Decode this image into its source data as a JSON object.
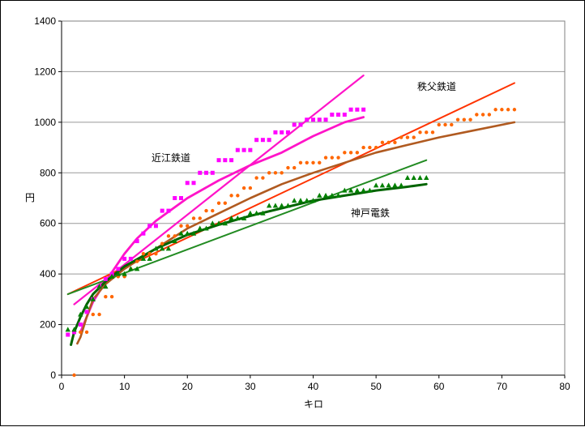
{
  "chart_data": {
    "type": "scatter",
    "xlabel": "キロ",
    "ylabel": "円",
    "xlim": [
      0,
      80
    ],
    "ylim": [
      0,
      1400
    ],
    "x_ticks": [
      0,
      10,
      20,
      30,
      40,
      50,
      60,
      70,
      80
    ],
    "y_ticks": [
      0,
      200,
      400,
      600,
      800,
      1000,
      1200,
      1400
    ],
    "grid": "horizontal",
    "legend": "none",
    "series": [
      {
        "name": "近江鉄道",
        "color": "#ff00ff",
        "marker": "square",
        "points": [
          [
            1,
            160
          ],
          [
            2,
            170
          ],
          [
            3,
            200
          ],
          [
            4,
            250
          ],
          [
            5,
            300
          ],
          [
            6,
            350
          ],
          [
            7,
            380
          ],
          [
            8,
            400
          ],
          [
            9,
            420
          ],
          [
            10,
            460
          ],
          [
            11,
            460
          ],
          [
            12,
            530
          ],
          [
            13,
            560
          ],
          [
            14,
            590
          ],
          [
            15,
            590
          ],
          [
            16,
            650
          ],
          [
            17,
            650
          ],
          [
            18,
            700
          ],
          [
            19,
            700
          ],
          [
            20,
            760
          ],
          [
            21,
            760
          ],
          [
            22,
            800
          ],
          [
            23,
            800
          ],
          [
            24,
            800
          ],
          [
            25,
            850
          ],
          [
            26,
            850
          ],
          [
            27,
            850
          ],
          [
            28,
            890
          ],
          [
            29,
            890
          ],
          [
            30,
            890
          ],
          [
            31,
            930
          ],
          [
            32,
            930
          ],
          [
            33,
            930
          ],
          [
            34,
            960
          ],
          [
            35,
            960
          ],
          [
            36,
            960
          ],
          [
            37,
            990
          ],
          [
            38,
            990
          ],
          [
            39,
            1010
          ],
          [
            40,
            1010
          ],
          [
            41,
            1010
          ],
          [
            42,
            1010
          ],
          [
            43,
            1030
          ],
          [
            44,
            1030
          ],
          [
            45,
            1030
          ],
          [
            46,
            1050
          ],
          [
            47,
            1050
          ],
          [
            48,
            1050
          ]
        ],
        "linear_fit": [
          [
            2,
            280
          ],
          [
            48,
            1185
          ]
        ],
        "log_fit": [
          [
            3,
            170
          ],
          [
            4,
            230
          ],
          [
            5,
            290
          ],
          [
            7,
            370
          ],
          [
            10,
            480
          ],
          [
            12,
            540
          ],
          [
            15,
            610
          ],
          [
            20,
            700
          ],
          [
            25,
            770
          ],
          [
            30,
            830
          ],
          [
            35,
            880
          ],
          [
            40,
            945
          ],
          [
            45,
            1000
          ],
          [
            48,
            1020
          ]
        ]
      },
      {
        "name": "秩父鉄道",
        "color": "#ff6600",
        "marker": "circle",
        "points": [
          [
            2,
            0
          ],
          [
            3,
            170
          ],
          [
            4,
            170
          ],
          [
            5,
            240
          ],
          [
            6,
            240
          ],
          [
            7,
            310
          ],
          [
            8,
            310
          ],
          [
            9,
            390
          ],
          [
            10,
            390
          ],
          [
            11,
            420
          ],
          [
            12,
            450
          ],
          [
            13,
            480
          ],
          [
            14,
            480
          ],
          [
            15,
            480
          ],
          [
            16,
            520
          ],
          [
            17,
            550
          ],
          [
            18,
            550
          ],
          [
            19,
            590
          ],
          [
            20,
            590
          ],
          [
            21,
            620
          ],
          [
            22,
            620
          ],
          [
            23,
            650
          ],
          [
            24,
            650
          ],
          [
            25,
            680
          ],
          [
            26,
            680
          ],
          [
            27,
            710
          ],
          [
            28,
            710
          ],
          [
            29,
            740
          ],
          [
            30,
            740
          ],
          [
            31,
            780
          ],
          [
            32,
            780
          ],
          [
            33,
            800
          ],
          [
            34,
            800
          ],
          [
            35,
            800
          ],
          [
            36,
            820
          ],
          [
            37,
            820
          ],
          [
            38,
            840
          ],
          [
            39,
            840
          ],
          [
            40,
            840
          ],
          [
            41,
            840
          ],
          [
            42,
            860
          ],
          [
            43,
            860
          ],
          [
            44,
            860
          ],
          [
            45,
            880
          ],
          [
            46,
            880
          ],
          [
            47,
            880
          ],
          [
            48,
            900
          ],
          [
            49,
            900
          ],
          [
            50,
            900
          ],
          [
            51,
            920
          ],
          [
            52,
            920
          ],
          [
            53,
            920
          ],
          [
            54,
            940
          ],
          [
            55,
            940
          ],
          [
            56,
            940
          ],
          [
            57,
            960
          ],
          [
            58,
            960
          ],
          [
            59,
            960
          ],
          [
            60,
            990
          ],
          [
            61,
            990
          ],
          [
            62,
            990
          ],
          [
            63,
            1010
          ],
          [
            64,
            1010
          ],
          [
            65,
            1010
          ],
          [
            66,
            1030
          ],
          [
            67,
            1030
          ],
          [
            68,
            1030
          ],
          [
            69,
            1050
          ],
          [
            70,
            1050
          ],
          [
            71,
            1050
          ],
          [
            72,
            1050
          ]
        ],
        "linear_fit": [
          [
            1,
            320
          ],
          [
            72,
            1155
          ]
        ],
        "log_fit": [
          [
            2.5,
            125
          ],
          [
            3,
            150
          ],
          [
            4,
            230
          ],
          [
            5,
            300
          ],
          [
            7,
            360
          ],
          [
            10,
            420
          ],
          [
            15,
            500
          ],
          [
            20,
            580
          ],
          [
            25,
            640
          ],
          [
            30,
            700
          ],
          [
            35,
            755
          ],
          [
            40,
            800
          ],
          [
            45,
            840
          ],
          [
            50,
            880
          ],
          [
            55,
            910
          ],
          [
            60,
            940
          ],
          [
            65,
            965
          ],
          [
            72,
            1000
          ]
        ]
      },
      {
        "name": "神戸電鉄",
        "color": "#008000",
        "marker": "triangle",
        "points": [
          [
            1,
            180
          ],
          [
            2,
            180
          ],
          [
            3,
            240
          ],
          [
            4,
            270
          ],
          [
            5,
            300
          ],
          [
            6,
            350
          ],
          [
            7,
            350
          ],
          [
            8,
            390
          ],
          [
            9,
            400
          ],
          [
            10,
            400
          ],
          [
            11,
            420
          ],
          [
            12,
            420
          ],
          [
            13,
            460
          ],
          [
            14,
            460
          ],
          [
            15,
            500
          ],
          [
            16,
            500
          ],
          [
            17,
            500
          ],
          [
            18,
            530
          ],
          [
            19,
            560
          ],
          [
            20,
            560
          ],
          [
            21,
            560
          ],
          [
            22,
            580
          ],
          [
            23,
            580
          ],
          [
            24,
            600
          ],
          [
            25,
            600
          ],
          [
            26,
            600
          ],
          [
            27,
            620
          ],
          [
            28,
            620
          ],
          [
            29,
            620
          ],
          [
            30,
            640
          ],
          [
            31,
            640
          ],
          [
            32,
            640
          ],
          [
            33,
            670
          ],
          [
            34,
            670
          ],
          [
            35,
            670
          ],
          [
            36,
            670
          ],
          [
            37,
            690
          ],
          [
            38,
            690
          ],
          [
            39,
            690
          ],
          [
            40,
            690
          ],
          [
            41,
            710
          ],
          [
            42,
            710
          ],
          [
            43,
            710
          ],
          [
            44,
            710
          ],
          [
            45,
            730
          ],
          [
            46,
            730
          ],
          [
            47,
            730
          ],
          [
            48,
            730
          ],
          [
            49,
            730
          ],
          [
            50,
            750
          ],
          [
            51,
            750
          ],
          [
            52,
            750
          ],
          [
            53,
            750
          ],
          [
            54,
            750
          ],
          [
            55,
            780
          ],
          [
            56,
            780
          ],
          [
            57,
            780
          ],
          [
            58,
            780
          ]
        ],
        "linear_fit": [
          [
            1,
            320
          ],
          [
            58,
            850
          ]
        ],
        "log_fit": [
          [
            1.5,
            120
          ],
          [
            2,
            170
          ],
          [
            3,
            230
          ],
          [
            4,
            280
          ],
          [
            5,
            320
          ],
          [
            7,
            370
          ],
          [
            10,
            430
          ],
          [
            15,
            500
          ],
          [
            20,
            555
          ],
          [
            25,
            595
          ],
          [
            30,
            630
          ],
          [
            35,
            660
          ],
          [
            40,
            690
          ],
          [
            45,
            710
          ],
          [
            50,
            730
          ],
          [
            55,
            745
          ],
          [
            58,
            755
          ]
        ]
      }
    ],
    "annotations": [
      {
        "text": "近江鉄道",
        "series": "近江鉄道"
      },
      {
        "text": "秩父鉄道",
        "series": "秩父鉄道"
      },
      {
        "text": "神戸電鉄",
        "series": "神戸電鉄"
      }
    ],
    "colors": {
      "ohmi_points": "#ff00ff",
      "ohmi_lines": "#ff14c8",
      "chichibu_points": "#ff6600",
      "chichibu_linear": "#ff3300",
      "chichibu_log": "#b05a20",
      "kobe_points": "#008000",
      "kobe_linear": "#228b22",
      "kobe_log": "#006400",
      "grid": "#999999"
    }
  }
}
